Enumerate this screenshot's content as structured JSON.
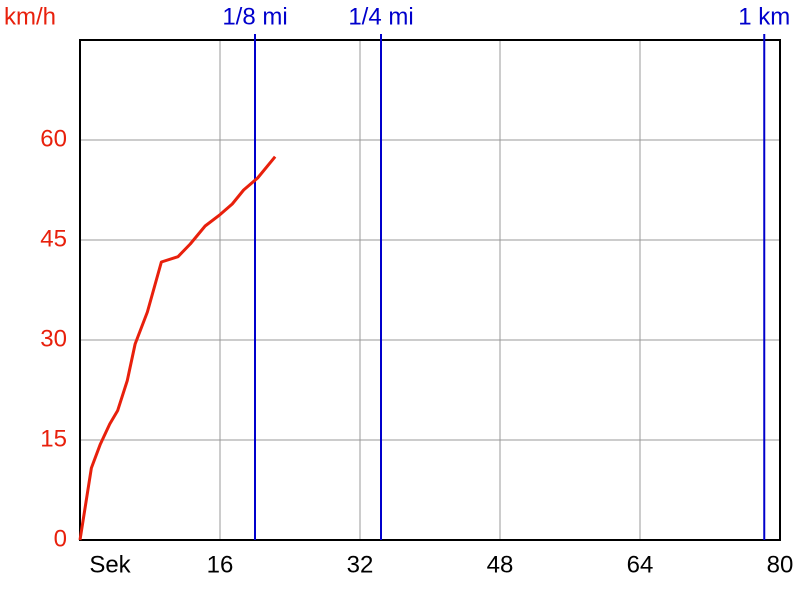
{
  "chart_data": {
    "type": "line",
    "y_label": "km/h",
    "x": [
      0,
      1.3,
      2.3,
      3.4,
      4.3,
      5.4,
      6.3,
      7.7,
      9.3,
      11.2,
      12.6,
      14.3,
      16,
      17.4,
      18.7,
      20.3,
      22.3
    ],
    "series": [
      {
        "color": "#e8200c",
        "values": [
          0,
          10.8,
          14.3,
          17.4,
          19.4,
          23.9,
          29.4,
          34.2,
          41.7,
          42.5,
          44.4,
          47.1,
          48.8,
          50.4,
          52.5,
          54.3,
          57.5
        ]
      }
    ],
    "xlim": [
      0,
      80
    ],
    "ylim": [
      0,
      75
    ],
    "xticks": [
      {
        "value": 0,
        "label": "Sek"
      },
      16,
      32,
      48,
      64,
      80
    ],
    "yticks": [
      0,
      15,
      30,
      45,
      60
    ],
    "grid": true,
    "y_tick_color": "#e8200c",
    "markers": [
      {
        "label": "1/8 mi",
        "x": 20,
        "color": "#0000cc"
      },
      {
        "label": "1/4 mi",
        "x": 34.4,
        "color": "#0000cc"
      },
      {
        "label": "1 km",
        "x": 78.2,
        "color": "#0000cc"
      }
    ]
  }
}
